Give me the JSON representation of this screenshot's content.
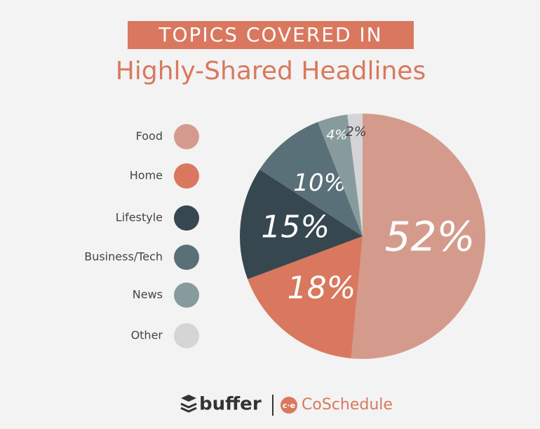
{
  "chart_data": {
    "type": "pie",
    "title": "TOPICS COVERED IN",
    "subtitle": "Highly-Shared Headlines",
    "categories": [
      "Food",
      "Home",
      "Lifestyle",
      "Business/Tech",
      "News",
      "Other"
    ],
    "values": [
      52,
      18,
      15,
      10,
      4,
      2
    ],
    "value_labels": [
      "52%",
      "18%",
      "15%",
      "10%",
      "4%",
      "2%"
    ],
    "colors": [
      "#d49b8d",
      "#d9785e",
      "#37474f",
      "#5a7078",
      "#889b9c",
      "#d5d5d7"
    ],
    "legend": "left",
    "logos": [
      "buffer",
      "CoSchedule"
    ]
  }
}
